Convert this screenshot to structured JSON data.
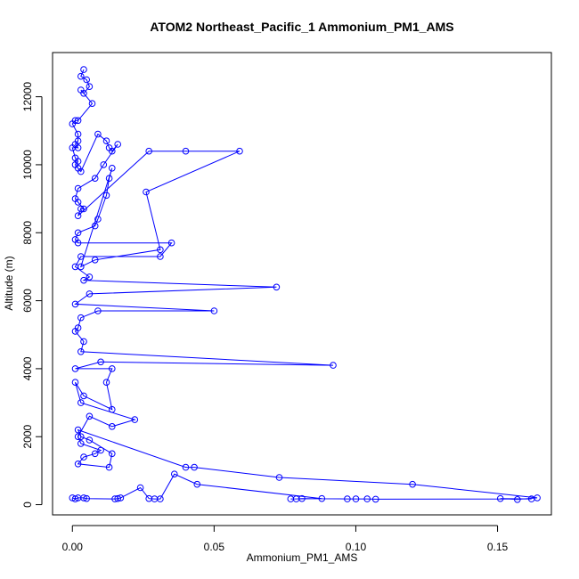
{
  "chart_data": {
    "type": "scatter",
    "title": "ATOM2 Northeast_Pacific_1 Ammonium_PM1_AMS",
    "xlabel": "Ammonium_PM1_AMS",
    "ylabel": "Altitude (m)",
    "xlim": [
      -0.007,
      0.169
    ],
    "ylim": [
      -300,
      13300
    ],
    "x_ticks": [
      0.0,
      0.05,
      0.1,
      0.15
    ],
    "x_tick_labels": [
      "0.00",
      "0.05",
      "0.10",
      "0.15"
    ],
    "y_ticks": [
      0,
      2000,
      4000,
      6000,
      8000,
      10000,
      12000
    ],
    "y_tick_labels": [
      "0",
      "2000",
      "4000",
      "6000",
      "8000",
      "10000",
      "12000"
    ],
    "grid": false,
    "line_color": "#0000ff",
    "marker": "open-circle",
    "series": [
      {
        "x": [
          0.004,
          0.003,
          0.005,
          0.006,
          0.004,
          0.003,
          0.007,
          0.002,
          0.001,
          0.0,
          0.002,
          0.002,
          0.001,
          0.002,
          0.0,
          0.001,
          0.002,
          0.001,
          0.002,
          0.003,
          0.009,
          0.012,
          0.013,
          0.014,
          0.016,
          0.011,
          0.008,
          0.002,
          0.001,
          0.002,
          0.004,
          0.003,
          0.002,
          0.027,
          0.04,
          0.059,
          0.026,
          0.031,
          0.008,
          0.003,
          0.014,
          0.013,
          0.012,
          0.009,
          0.008,
          0.002,
          0.001,
          0.002,
          0.035,
          0.031,
          0.003,
          0.001,
          0.006,
          0.004,
          0.072,
          0.006,
          0.001,
          0.05,
          0.009,
          0.003,
          0.002,
          0.001,
          0.004,
          0.003,
          0.092,
          0.01,
          0.001,
          0.014,
          0.012,
          0.014,
          0.004,
          0.001,
          0.003,
          0.022,
          0.014,
          0.006,
          0.002,
          0.003,
          0.01,
          0.008,
          0.004,
          0.002,
          0.013,
          0.014,
          0.006,
          0.003,
          0.002,
          0.04,
          0.043,
          0.073,
          0.12,
          0.164,
          0.157,
          0.151,
          0.162,
          0.107,
          0.104,
          0.1,
          0.097,
          0.081,
          0.079,
          0.077,
          0.088,
          0.044,
          0.036,
          0.031,
          0.029,
          0.027,
          0.024,
          0.017,
          0.016,
          0.015,
          0.005,
          0.004,
          0.002,
          0.001,
          0.0
        ],
        "y": [
          12800,
          12600,
          12500,
          12300,
          12100,
          12200,
          11800,
          11300,
          11300,
          11200,
          10900,
          10700,
          10600,
          10500,
          10500,
          10200,
          10100,
          10000,
          9900,
          9800,
          10900,
          10700,
          10500,
          10400,
          10600,
          10000,
          9600,
          9300,
          9000,
          8900,
          8700,
          8700,
          8500,
          10400,
          10400,
          10400,
          9200,
          7500,
          7200,
          7000,
          9900,
          9600,
          9100,
          8400,
          8200,
          8000,
          7800,
          7700,
          7700,
          7300,
          7300,
          7000,
          6700,
          6600,
          6400,
          6200,
          5900,
          5700,
          5700,
          5500,
          5200,
          5100,
          4800,
          4500,
          4100,
          4200,
          4000,
          4000,
          3600,
          2800,
          3200,
          3600,
          3000,
          2500,
          2300,
          2600,
          2000,
          1800,
          1600,
          1500,
          1400,
          1200,
          1100,
          1500,
          1900,
          2000,
          2200,
          1100,
          1100,
          800,
          600,
          200,
          150,
          180,
          170,
          160,
          170,
          170,
          170,
          180,
          170,
          170,
          180,
          600,
          900,
          170,
          170,
          180,
          500,
          200,
          180,
          170,
          180,
          200,
          200,
          170,
          200
        ]
      }
    ]
  }
}
